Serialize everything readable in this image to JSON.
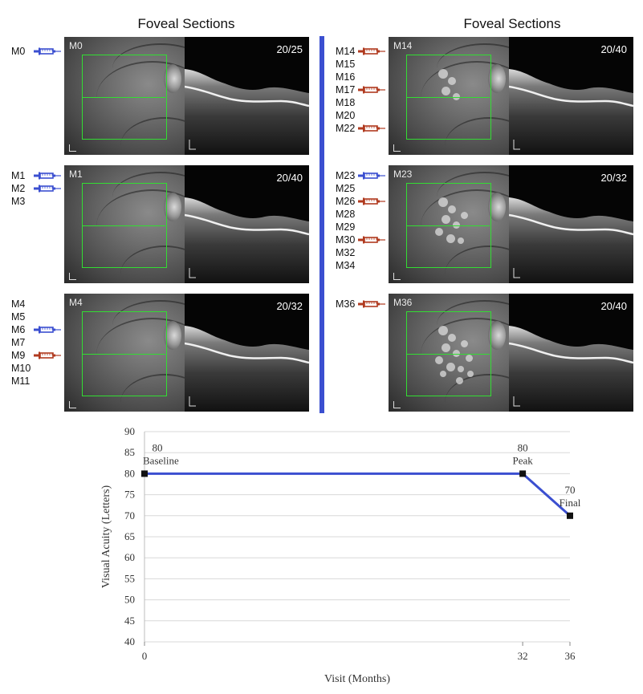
{
  "left_title": "Foveal Sections",
  "right_title": "Foveal Sections",
  "colors": {
    "divider": "#3b4fd0",
    "inj_blue": "#3b4fd0",
    "inj_red": "#b03a1f",
    "line": "#3b4fd0",
    "grid": "#d8d8d8",
    "box": "#33dd33"
  },
  "panels": [
    {
      "label": "M0",
      "va": "20/25",
      "lesions": 0
    },
    {
      "label": "M1",
      "va": "20/40",
      "lesions": 0
    },
    {
      "label": "M4",
      "va": "20/32",
      "lesions": 0
    },
    {
      "label": "M14",
      "va": "20/40",
      "lesions": 1
    },
    {
      "label": "M23",
      "va": "20/32",
      "lesions": 2
    },
    {
      "label": "M36",
      "va": "20/40",
      "lesions": 3
    }
  ],
  "month_groups": [
    {
      "items": [
        {
          "m": "M0",
          "inj": "blue"
        }
      ]
    },
    {
      "items": [
        {
          "m": "M1",
          "inj": "blue"
        },
        {
          "m": "M2",
          "inj": "blue"
        },
        {
          "m": "M3",
          "inj": ""
        }
      ]
    },
    {
      "items": [
        {
          "m": "M4",
          "inj": ""
        },
        {
          "m": "M5",
          "inj": ""
        },
        {
          "m": "M6",
          "inj": "blue"
        },
        {
          "m": "M7",
          "inj": ""
        },
        {
          "m": "M9",
          "inj": "red"
        },
        {
          "m": "M10",
          "inj": ""
        },
        {
          "m": "M11",
          "inj": ""
        }
      ]
    },
    {
      "items": [
        {
          "m": "M14",
          "inj": "red"
        },
        {
          "m": "M15",
          "inj": ""
        },
        {
          "m": "M16",
          "inj": ""
        },
        {
          "m": "M17",
          "inj": "red"
        },
        {
          "m": "M18",
          "inj": ""
        },
        {
          "m": "M20",
          "inj": ""
        },
        {
          "m": "M22",
          "inj": "red"
        }
      ]
    },
    {
      "items": [
        {
          "m": "M23",
          "inj": "blue"
        },
        {
          "m": "M25",
          "inj": ""
        },
        {
          "m": "M26",
          "inj": "red"
        },
        {
          "m": "M28",
          "inj": ""
        },
        {
          "m": "M29",
          "inj": ""
        },
        {
          "m": "M30",
          "inj": "red"
        },
        {
          "m": "M32",
          "inj": ""
        },
        {
          "m": "M34",
          "inj": ""
        }
      ]
    },
    {
      "items": [
        {
          "m": "M36",
          "inj": "red"
        }
      ]
    }
  ],
  "chart_data": {
    "type": "line",
    "xlabel": "Visit (Months)",
    "ylabel": "Visual Acuity (Letters)",
    "ylim": [
      40,
      90
    ],
    "yticks": [
      40,
      45,
      50,
      55,
      60,
      65,
      70,
      75,
      80,
      85,
      90
    ],
    "xlim": [
      0,
      36
    ],
    "xticks": [
      0,
      32,
      36
    ],
    "grid": true,
    "series": [
      {
        "x": [
          0,
          32,
          36
        ],
        "values": [
          80,
          80,
          70
        ]
      }
    ],
    "annotations": [
      {
        "x": 0,
        "value_label": "80",
        "text": "Baseline"
      },
      {
        "x": 32,
        "value_label": "80",
        "text": "Peak"
      },
      {
        "x": 36,
        "value_label": "70",
        "text": "Final"
      }
    ]
  }
}
